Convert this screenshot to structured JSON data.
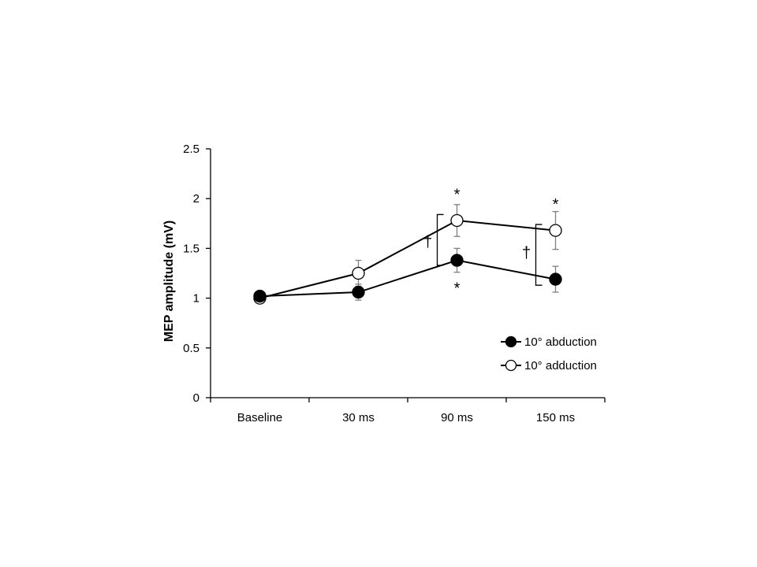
{
  "chart_data": {
    "type": "line",
    "categories": [
      "Baseline",
      "30 ms",
      "90 ms",
      "150 ms"
    ],
    "ylabel": "MEP amplitude (mV)",
    "xlabel": "",
    "ylim": [
      0,
      2.5
    ],
    "yticks": [
      0,
      0.5,
      1,
      1.5,
      2,
      2.5
    ],
    "ytick_labels": [
      "0",
      "0.5",
      "1",
      "1.5",
      "2",
      "2.5"
    ],
    "grid": false,
    "legend_position": "bottom-right",
    "series": [
      {
        "name": "10° abduction",
        "marker": "filled-circle",
        "values": [
          1.02,
          1.06,
          1.38,
          1.19
        ],
        "errors": [
          0.02,
          0.08,
          0.12,
          0.13
        ]
      },
      {
        "name": "10° adduction",
        "marker": "open-circle",
        "values": [
          1.0,
          1.25,
          1.78,
          1.68
        ],
        "errors": [
          0.0,
          0.13,
          0.16,
          0.19
        ]
      }
    ],
    "annotations": [
      {
        "text": "*",
        "category": "90 ms",
        "y": 2.1,
        "meaning": "above adduction point"
      },
      {
        "text": "*",
        "category": "90 ms",
        "y": 1.16,
        "meaning": "below abduction point"
      },
      {
        "text": "*",
        "category": "150 ms",
        "y": 2.0,
        "meaning": "above adduction point"
      },
      {
        "text": "†",
        "category": "90 ms",
        "y": 1.57,
        "bracket": [
          1.33,
          1.84
        ]
      },
      {
        "text": "†",
        "category": "150 ms",
        "y": 1.46,
        "bracket": [
          1.13,
          1.74
        ]
      }
    ]
  }
}
